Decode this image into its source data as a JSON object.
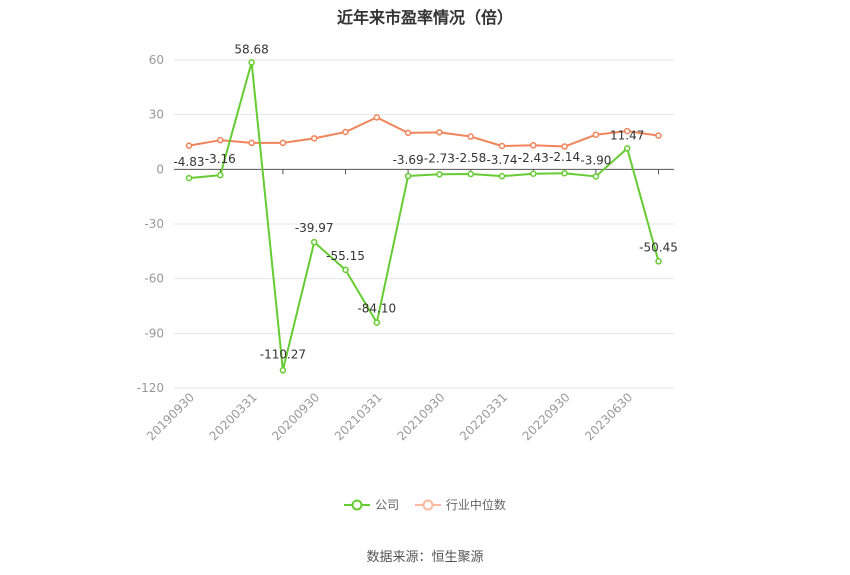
{
  "chart_data": {
    "type": "line",
    "title": "近年来市盈率情况（倍）",
    "xlabel": "",
    "ylabel": "",
    "ylim": [
      -120,
      60
    ],
    "yticks": [
      60,
      30,
      0,
      -30,
      -60,
      -90,
      -120
    ],
    "grid": true,
    "legend_position": "bottom",
    "x_tick_labels": [
      "20190930",
      "20200331",
      "20200930",
      "20210331",
      "20210930",
      "20220331",
      "20220930",
      "20230630"
    ],
    "x_tick_positions": [
      0,
      2,
      4,
      6,
      8,
      10,
      12,
      14
    ],
    "point_count": 16,
    "series": [
      {
        "name": "公司",
        "color": "#66cc33",
        "values": [
          -4.83,
          -3.16,
          58.68,
          -110.27,
          -39.97,
          -55.15,
          -84.1,
          -3.69,
          -2.73,
          -2.58,
          -3.74,
          -2.43,
          -2.14,
          -3.9,
          11.47,
          -50.45
        ],
        "labels": [
          "-4.83",
          "-3.16",
          "58.68",
          "-110.27",
          "-39.97",
          "-55.15",
          "-84.10",
          "-3.69",
          "-2.73",
          "-2.58",
          "-3.74",
          "-2.43",
          "-2.14",
          "-3.90",
          "11.47",
          "-50.45"
        ]
      },
      {
        "name": "行业中位数",
        "color": "#f0845a",
        "values": [
          13.0,
          16.0,
          14.5,
          14.5,
          17.0,
          20.5,
          28.5,
          20.0,
          20.3,
          18.0,
          12.8,
          13.2,
          12.5,
          19.0,
          21.0,
          18.5
        ]
      }
    ]
  },
  "source_text": "数据来源：恒生聚源"
}
